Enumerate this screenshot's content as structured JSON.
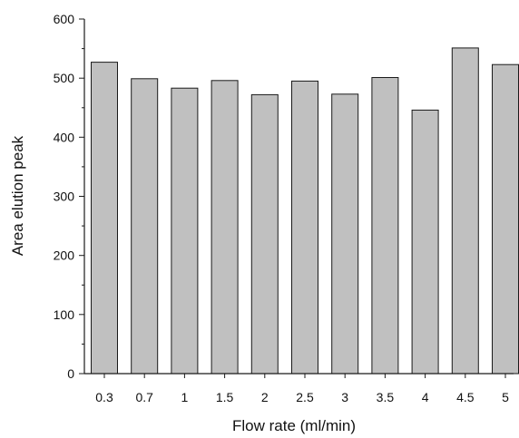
{
  "chart_data": {
    "type": "bar",
    "title": "",
    "xlabel": "Flow rate (ml/min)",
    "ylabel": "Area elution peak",
    "categories": [
      "0.3",
      "0.7",
      "1",
      "1.5",
      "2",
      "2.5",
      "3",
      "3.5",
      "4",
      "4.5",
      "5"
    ],
    "values": [
      527,
      499,
      483,
      496,
      472,
      495,
      473,
      501,
      446,
      551,
      523
    ],
    "ylim": [
      0,
      600
    ],
    "yticks": [
      0,
      100,
      200,
      300,
      400,
      500,
      600
    ],
    "grid": false,
    "legend": "none",
    "colors": {
      "bar_fill": "#c0c0c0",
      "bar_stroke": "#1a1a1a",
      "axis": "#1a1a1a"
    }
  }
}
